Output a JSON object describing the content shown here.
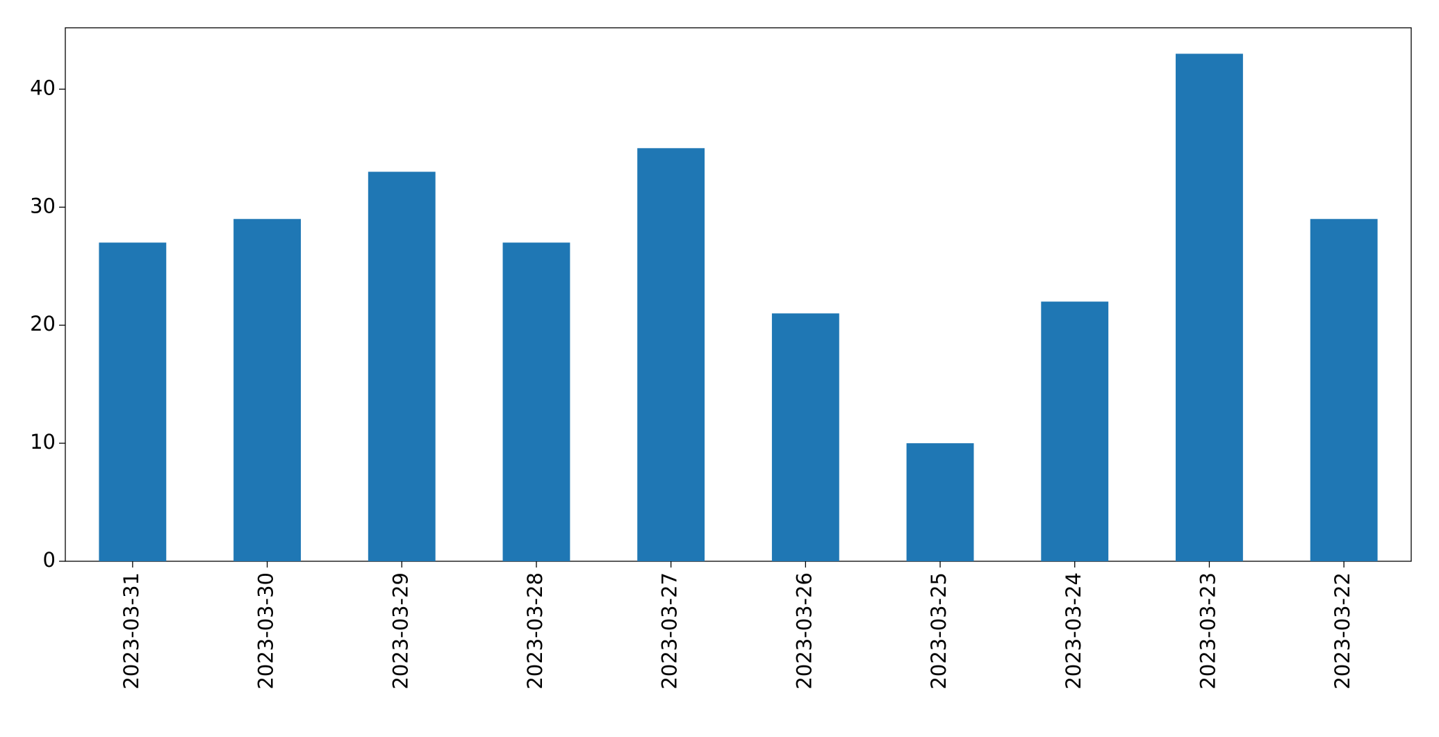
{
  "chart_data": {
    "type": "bar",
    "categories": [
      "2023-03-31",
      "2023-03-30",
      "2023-03-29",
      "2023-03-28",
      "2023-03-27",
      "2023-03-26",
      "2023-03-25",
      "2023-03-24",
      "2023-03-23",
      "2023-03-22"
    ],
    "values": [
      27,
      29,
      33,
      27,
      35,
      21,
      10,
      22,
      43,
      29
    ],
    "color": "#1f77b4",
    "ylim": [
      0,
      45.2
    ],
    "yticks": [
      0,
      10,
      20,
      30,
      40
    ],
    "grid": false
  }
}
